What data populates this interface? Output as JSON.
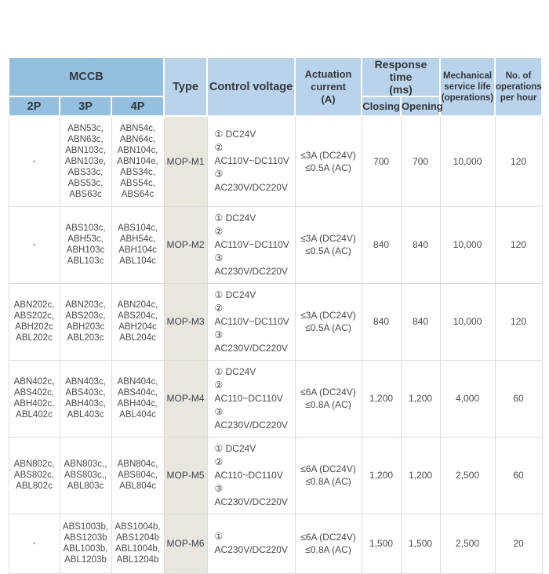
{
  "colors": {
    "header_blue_medium": "#94c0e0",
    "header_blue_light": "#b9d4ea",
    "type_column_bg": "#e9e6e0",
    "grid_line": "#dcdcdc",
    "text": "#3a3e42"
  },
  "table": {
    "headers": {
      "mccb": "MCCB",
      "p2": "2P",
      "p3": "3P",
      "p4": "4P",
      "type": "Type",
      "control_voltage": "Control voltage",
      "actuation_current": "Actuation\ncurrent\n(A)",
      "response_time": "Response time\n(ms)",
      "closing": "Closing",
      "opening": "Opening",
      "service_life": "Mechanical\nservice life\n(operations)",
      "ops_per_hour": "No. of\noperations\nper hour"
    },
    "rows": [
      {
        "p2": "-",
        "p3": "ABN53c,\nABN63c,\nABN103c,\nABN103e,\nABS33c,\nABS53c,\nABS63c",
        "p4": "ABN54c,\nABN64c,\nABN104c,\nABN104e,\nABS34c,\nABS54c,\nABS64c",
        "type": "MOP-M1",
        "control_voltage": "① DC24V\n② AC110V~DC110V\n③ AC230V/DC220V",
        "actuation_current": "≤3A (DC24V)\n≤0.5A (AC)",
        "closing": "700",
        "opening": "700",
        "service_life": "10,000",
        "ops_per_hour": "120"
      },
      {
        "p2": "-",
        "p3": "ABS103c,\nABH53c,\nABH103c\nABL103c",
        "p4": "ABS104c,\nABH54c,\nABH104c\nABL104c",
        "type": "MOP-M2",
        "control_voltage": "① DC24V\n② AC110V~DC110V\n③ AC230V/DC220V",
        "actuation_current": "≤3A (DC24V)\n≤0.5A (AC)",
        "closing": "840",
        "opening": "840",
        "service_life": "10,000",
        "ops_per_hour": "120"
      },
      {
        "p2": "ABN202c,\nABS202c,\nABH202c\nABL202c",
        "p3": "ABN203c,\nABS203c,\nABH203c\nABL203c",
        "p4": "ABN204c,\nABS204c,\nABH204c\nABL204c",
        "type": "MOP-M3",
        "control_voltage": "① DC24V\n② AC110V~DC110V\n③ AC230V/DC220V",
        "actuation_current": "≤3A (DC24V)\n≤0.5A (AC)",
        "closing": "840",
        "opening": "840",
        "service_life": "10,000",
        "ops_per_hour": "120"
      },
      {
        "p2": "ABN402c,\nABS402c,\nABH402c,\nABL402c",
        "p3": "ABN403c,\nABS403c,\nABH403c,\nABL403c",
        "p4": "ABN404c,\nABS404c,\nABH404c,\nABL404c",
        "type": "MOP-M4",
        "control_voltage": "① DC24V\n② AC110~DC110V\n③ AC230V/DC220V",
        "actuation_current": "≤6A (DC24V)\n≤0.8A (AC)",
        "closing": "1,200",
        "opening": "1,200",
        "service_life": "4,000",
        "ops_per_hour": "60"
      },
      {
        "p2": "ABN802c,\nABS802c,\nABL802c",
        "p3": "ABN803c,,\nABS803c,,\nABL803c",
        "p4": "ABN804c,\nABS804c,\nABL804c",
        "type": "MOP-M5",
        "control_voltage": "① DC24V\n② AC110~DC110V\n③ AC230V/DC220V",
        "actuation_current": "≤6A (DC24V)\n≤0.8A (AC)",
        "closing": "1,200",
        "opening": "1,200",
        "service_life": "2,500",
        "ops_per_hour": "60"
      },
      {
        "p2": "-",
        "p3": "ABS1003b,\nABS1203b\nABL1003b,\nABL1203b",
        "p4": "ABS1004b,\nABS1204b\nABL1004b,\nABL1204b",
        "type": "MOP-M6",
        "control_voltage": "① AC230V/DC220V",
        "actuation_current": "≤6A (DC24V)\n≤0.8A (AC)",
        "closing": "1,500",
        "opening": "1,500",
        "service_life": "2,500",
        "ops_per_hour": "20"
      }
    ]
  }
}
